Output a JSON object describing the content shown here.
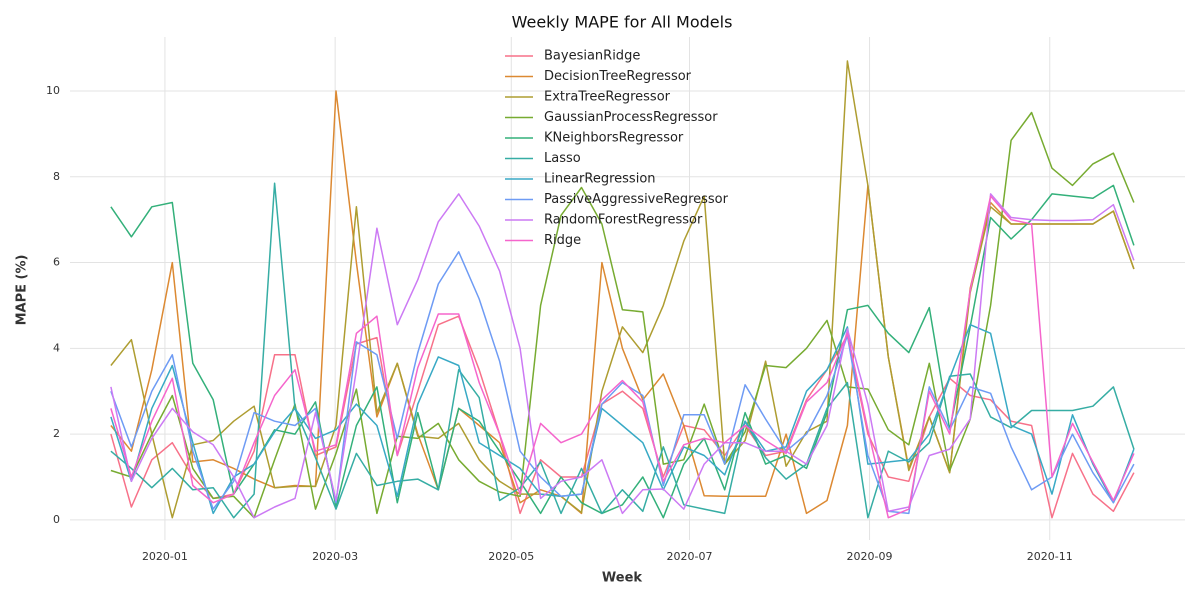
{
  "chart_data": {
    "type": "line",
    "title": "Weekly MAPE for All Models",
    "xlabel": "Week",
    "ylabel": "MAPE (%)",
    "xlim": [
      -2.0,
      52.5
    ],
    "ylim": [
      -0.47,
      11.26
    ],
    "xticks": [
      {
        "value": 2.64,
        "label": "2020-01"
      },
      {
        "value": 10.96,
        "label": "2020-03"
      },
      {
        "value": 19.57,
        "label": "2020-05"
      },
      {
        "value": 28.28,
        "label": "2020-07"
      },
      {
        "value": 37.08,
        "label": "2020-09"
      },
      {
        "value": 45.89,
        "label": "2020-11"
      }
    ],
    "yticks": [
      0,
      2,
      4,
      6,
      8,
      10
    ],
    "grid": true,
    "legend": "upper center",
    "series": [
      {
        "name": "BayesianRidge",
        "color": "#f77189",
        "values": [
          2.0,
          0.3,
          1.4,
          1.8,
          1.0,
          0.5,
          0.6,
          1.6,
          3.85,
          3.85,
          1.5,
          1.7,
          4.1,
          4.25,
          1.5,
          3.0,
          4.55,
          4.75,
          3.5,
          2.0,
          0.15,
          1.4,
          1.0,
          1.0,
          2.7,
          3.0,
          2.6,
          1.0,
          2.2,
          2.1,
          1.5,
          2.2,
          1.5,
          1.6,
          2.8,
          3.5,
          4.3,
          2.0,
          1.0,
          0.9,
          2.4,
          3.3,
          2.9,
          2.8,
          2.3,
          2.2,
          0.05,
          1.55,
          0.6,
          0.2,
          1.1
        ]
      },
      {
        "name": "DecisionTreeRegressor",
        "color": "#dc8932",
        "values": [
          2.2,
          1.6,
          3.5,
          6.0,
          1.35,
          1.4,
          1.2,
          0.95,
          0.75,
          0.8,
          0.78,
          10.0,
          6.0,
          2.4,
          3.65,
          2.0,
          0.7,
          2.6,
          2.2,
          1.8,
          0.4,
          0.7,
          0.55,
          0.15,
          6.0,
          4.0,
          2.8,
          3.4,
          2.2,
          0.56,
          0.55,
          0.55,
          0.55,
          2.0,
          0.15,
          0.45,
          2.2,
          7.8,
          3.8,
          1.2,
          2.4,
          1.1,
          5.4,
          7.4,
          6.9,
          6.9,
          6.9,
          6.9,
          6.9,
          7.2,
          5.85
        ]
      },
      {
        "name": "ExtraTreeRegressor",
        "color": "#ae9d31",
        "values": [
          3.6,
          4.2,
          2.0,
          0.05,
          1.75,
          1.85,
          2.3,
          2.65,
          0.75,
          0.78,
          0.78,
          2.2,
          7.3,
          2.5,
          3.65,
          1.95,
          1.9,
          2.25,
          1.4,
          0.9,
          0.6,
          0.6,
          0.55,
          0.17,
          3.0,
          4.5,
          3.9,
          5.0,
          6.5,
          7.55,
          1.3,
          1.85,
          3.7,
          1.25,
          2.05,
          2.3,
          10.7,
          7.8,
          3.8,
          1.15,
          2.4,
          1.1,
          5.3,
          7.3,
          6.9,
          6.9,
          6.9,
          6.9,
          6.9,
          7.2,
          5.85
        ]
      },
      {
        "name": "GaussianProcessRegressor",
        "color": "#77ab31",
        "values": [
          1.15,
          1.0,
          2.0,
          2.9,
          1.2,
          0.5,
          0.55,
          0.05,
          1.4,
          2.7,
          0.25,
          1.55,
          3.05,
          0.15,
          1.95,
          1.9,
          2.25,
          1.4,
          0.9,
          0.65,
          0.55,
          5.0,
          7.1,
          7.75,
          6.9,
          4.9,
          4.85,
          1.3,
          1.4,
          2.7,
          1.3,
          2.05,
          3.6,
          3.55,
          4.0,
          4.65,
          3.1,
          3.05,
          2.1,
          1.75,
          3.65,
          1.15,
          2.35,
          5.0,
          8.85,
          9.5,
          8.2,
          7.8,
          8.3,
          8.55,
          7.4
        ]
      },
      {
        "name": "KNeighborsRegressor",
        "color": "#33b07a",
        "values": [
          7.3,
          6.6,
          7.3,
          7.4,
          3.65,
          2.8,
          0.6,
          1.3,
          2.1,
          2.0,
          2.75,
          0.3,
          2.2,
          3.1,
          0.4,
          2.5,
          0.7,
          2.6,
          2.3,
          1.6,
          0.9,
          0.15,
          1.0,
          0.4,
          0.15,
          0.35,
          1.0,
          0.05,
          1.3,
          1.9,
          0.7,
          2.5,
          1.3,
          1.5,
          1.2,
          2.5,
          4.9,
          5.0,
          4.35,
          3.9,
          4.95,
          2.1,
          4.5,
          7.05,
          6.55,
          7.0,
          7.6,
          7.55,
          7.5,
          7.8,
          6.4
        ]
      },
      {
        "name": "Lasso",
        "color": "#36ada4",
        "values": [
          1.6,
          1.2,
          0.75,
          1.2,
          0.7,
          0.75,
          0.05,
          0.6,
          7.85,
          2.6,
          1.45,
          0.25,
          1.55,
          0.8,
          0.9,
          0.95,
          0.7,
          3.5,
          2.85,
          0.45,
          0.75,
          1.35,
          0.15,
          1.2,
          0.15,
          0.7,
          0.2,
          1.7,
          0.35,
          0.25,
          0.15,
          2.3,
          1.45,
          0.95,
          1.3,
          2.6,
          3.2,
          0.05,
          1.6,
          1.35,
          1.8,
          3.35,
          3.4,
          2.4,
          2.15,
          2.55,
          2.55,
          2.55,
          2.65,
          3.1,
          1.65
        ]
      },
      {
        "name": "LinearRegression",
        "color": "#38a9c5",
        "values": [
          2.4,
          0.9,
          2.6,
          3.6,
          1.8,
          0.15,
          1.0,
          1.3,
          2.05,
          2.6,
          1.9,
          2.1,
          2.7,
          2.2,
          0.55,
          2.7,
          3.8,
          3.6,
          1.8,
          1.5,
          1.2,
          0.6,
          0.55,
          0.6,
          2.6,
          2.2,
          1.8,
          0.7,
          1.7,
          1.5,
          1.05,
          2.3,
          1.6,
          1.7,
          3.0,
          3.5,
          4.5,
          1.3,
          1.35,
          1.4,
          2.0,
          3.3,
          4.55,
          4.35,
          2.2,
          2.0,
          0.6,
          2.45,
          1.3,
          0.4,
          1.65
        ]
      },
      {
        "name": "PassiveAggressiveRegressor",
        "color": "#6e9bf4",
        "values": [
          3.0,
          1.7,
          3.0,
          3.85,
          1.6,
          0.25,
          0.9,
          2.5,
          2.3,
          2.2,
          2.6,
          0.4,
          4.15,
          3.85,
          1.9,
          3.9,
          5.5,
          6.25,
          5.15,
          3.7,
          1.6,
          1.0,
          0.55,
          0.6,
          2.7,
          3.2,
          2.9,
          0.8,
          2.45,
          2.45,
          1.3,
          3.15,
          2.35,
          1.6,
          2.0,
          2.9,
          4.3,
          1.5,
          0.2,
          0.15,
          3.1,
          2.1,
          3.1,
          2.95,
          1.7,
          0.7,
          1.0,
          2.0,
          1.1,
          0.4,
          1.3
        ]
      },
      {
        "name": "RandomForestRegressor",
        "color": "#cc7af4",
        "values": [
          3.1,
          0.9,
          1.9,
          2.6,
          2.05,
          1.75,
          1.0,
          0.05,
          0.3,
          0.5,
          2.5,
          0.45,
          3.5,
          6.8,
          4.55,
          5.6,
          6.95,
          7.6,
          6.85,
          5.8,
          4.0,
          0.5,
          0.9,
          1.0,
          1.4,
          0.15,
          0.7,
          0.72,
          0.25,
          1.3,
          1.8,
          1.8,
          1.6,
          1.6,
          1.3,
          2.2,
          4.45,
          2.7,
          0.2,
          0.3,
          1.5,
          1.65,
          2.35,
          7.6,
          7.05,
          7.0,
          6.98,
          6.98,
          7.0,
          7.35,
          6.05
        ]
      },
      {
        "name": "Ridge",
        "color": "#f565cc",
        "values": [
          2.6,
          1.0,
          2.3,
          3.3,
          0.8,
          0.4,
          0.6,
          1.8,
          2.9,
          3.5,
          1.6,
          1.75,
          4.35,
          4.75,
          1.5,
          3.55,
          4.8,
          4.8,
          3.2,
          2.0,
          0.6,
          2.25,
          1.8,
          2.0,
          2.8,
          3.25,
          2.75,
          0.9,
          1.75,
          1.9,
          1.8,
          2.2,
          1.85,
          1.55,
          2.75,
          3.2,
          4.35,
          2.1,
          0.05,
          0.25,
          3.0,
          2.0,
          5.35,
          7.55,
          7.0,
          6.9,
          1.0,
          2.25,
          1.35,
          0.45,
          1.55
        ]
      }
    ]
  }
}
